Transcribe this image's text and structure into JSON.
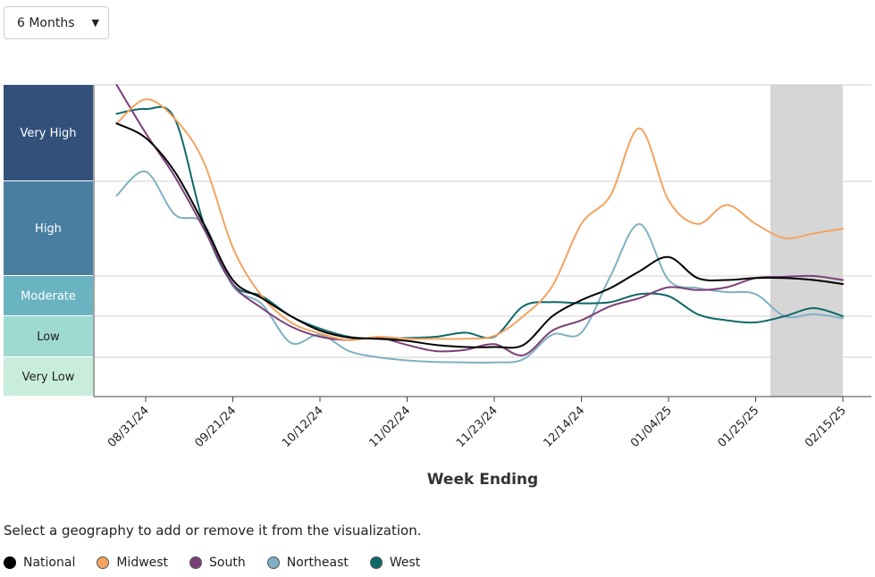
{
  "controls": {
    "range_select": {
      "value": "6 Months"
    }
  },
  "instructions": "Select a geography to add or remove it from the visualization.",
  "colors": {
    "very_high": "#32507a",
    "high": "#4a7ea0",
    "moderate": "#6ab3c1",
    "low": "#9ed9d2",
    "very_low": "#c8eedb",
    "highlight": "#d6d6d6"
  },
  "chart_data": {
    "type": "line",
    "xlabel": "Week Ending",
    "ylabel": "",
    "x_ticks": [
      "08/31/24",
      "09/21/24",
      "10/12/24",
      "11/02/24",
      "11/23/24",
      "12/14/24",
      "01/04/25",
      "01/25/25",
      "02/15/25"
    ],
    "x_range": [
      "08/24/24",
      "02/15/25"
    ],
    "y_range": [
      0,
      5
    ],
    "levels": [
      {
        "name": "Very Low",
        "from": 0,
        "to": 1
      },
      {
        "name": "Low",
        "from": 1,
        "to": 2
      },
      {
        "name": "Moderate",
        "from": 2,
        "to": 3
      },
      {
        "name": "High",
        "from": 3,
        "to": 4
      },
      {
        "name": "Very High",
        "from": 4,
        "to": 5
      }
    ],
    "highlight_range": [
      "02/01/25",
      "02/15/25"
    ],
    "grid": true,
    "legend": "bottom",
    "dates": [
      "08/24/24",
      "08/31/24",
      "09/07/24",
      "09/14/24",
      "09/21/24",
      "09/28/24",
      "10/05/24",
      "10/12/24",
      "10/19/24",
      "10/26/24",
      "11/02/24",
      "11/09/24",
      "11/16/24",
      "11/23/24",
      "11/30/24",
      "12/07/24",
      "12/14/24",
      "12/21/24",
      "12/28/24",
      "01/04/25",
      "01/11/25",
      "01/18/25",
      "01/25/25",
      "02/01/25",
      "02/08/25",
      "02/15/25"
    ],
    "series": [
      {
        "name": "National",
        "color": "#000000",
        "values": [
          4.6,
          4.45,
          4.1,
          3.55,
          2.9,
          2.45,
          2.0,
          1.65,
          1.48,
          1.45,
          1.4,
          1.3,
          1.25,
          1.25,
          1.3,
          2.0,
          2.4,
          2.7,
          3.05,
          3.2,
          2.95,
          2.9,
          2.95,
          2.95,
          2.9,
          2.8
        ]
      },
      {
        "name": "Midwest",
        "color": "#f4a460",
        "values": [
          4.6,
          4.85,
          4.65,
          4.2,
          3.3,
          2.5,
          1.85,
          1.58,
          1.42,
          1.5,
          1.45,
          1.45,
          1.45,
          1.52,
          2.0,
          2.75,
          3.55,
          3.85,
          4.55,
          3.8,
          3.55,
          3.75,
          3.55,
          3.4,
          3.45,
          3.5
        ]
      },
      {
        "name": "South",
        "color": "#7b3f78",
        "values": [
          5.0,
          4.5,
          4.05,
          3.5,
          2.8,
          2.2,
          1.75,
          1.5,
          1.42,
          1.48,
          1.3,
          1.15,
          1.18,
          1.32,
          1.05,
          1.65,
          1.9,
          2.25,
          2.45,
          2.72,
          2.65,
          2.72,
          2.95,
          2.98,
          3.0,
          2.9
        ]
      },
      {
        "name": "Northeast",
        "color": "#7fb0c4",
        "values": [
          3.85,
          4.1,
          3.65,
          3.55,
          2.75,
          2.3,
          1.35,
          1.55,
          1.15,
          1.0,
          0.92,
          0.88,
          0.87,
          0.87,
          0.95,
          1.55,
          1.6,
          3.0,
          3.55,
          2.9,
          2.7,
          2.6,
          2.55,
          2.0,
          2.05,
          1.95
        ]
      },
      {
        "name": "West",
        "color": "#0f6868",
        "values": [
          4.7,
          4.75,
          4.65,
          3.55,
          2.8,
          2.5,
          2.0,
          1.7,
          1.5,
          1.45,
          1.47,
          1.5,
          1.6,
          1.5,
          2.25,
          2.35,
          2.32,
          2.35,
          2.55,
          2.5,
          2.05,
          1.9,
          1.85,
          2.0,
          2.2,
          2.0
        ]
      }
    ]
  }
}
